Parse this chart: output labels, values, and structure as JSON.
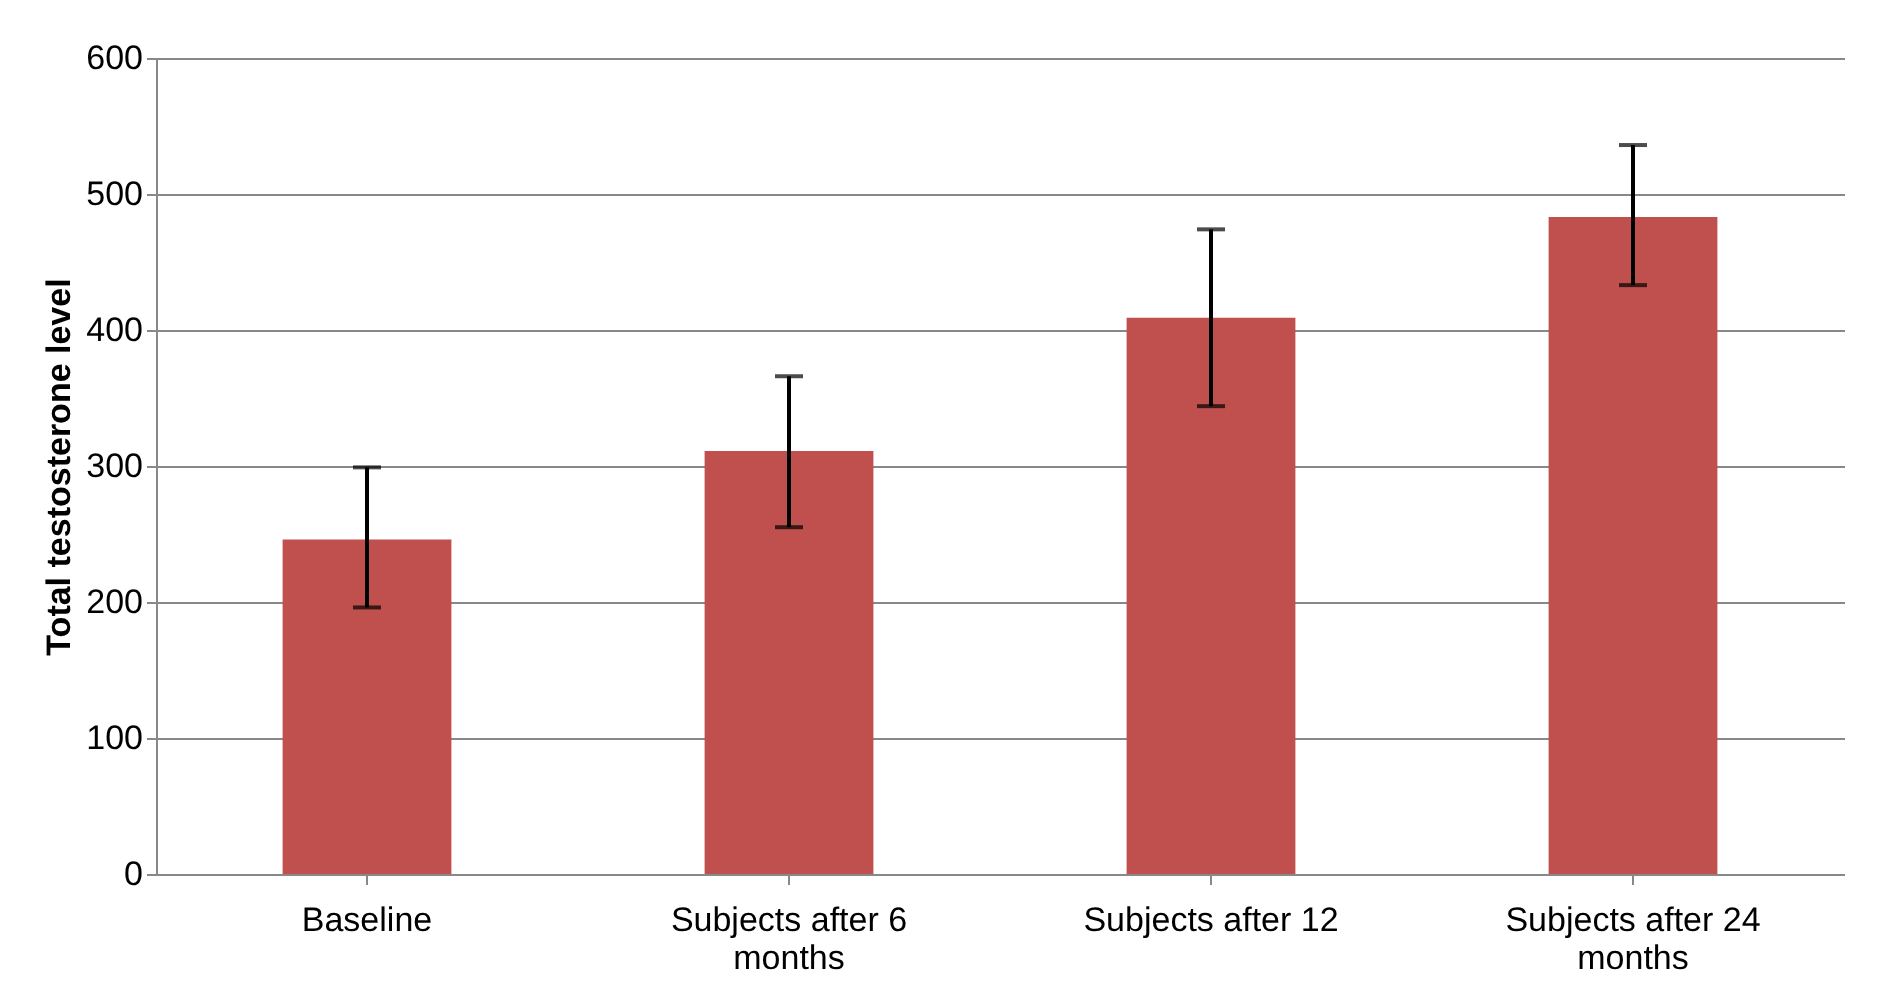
{
  "chart_data": {
    "type": "bar",
    "ylabel": "Total testosterone level",
    "categories": [
      "Baseline",
      "Subjects after 6 months",
      "Subjects after 12",
      "Subjects after 24 months"
    ],
    "values": [
      246,
      311,
      409,
      483
    ],
    "errors": [
      [
        196,
        299
      ],
      [
        255,
        366
      ],
      [
        344,
        474
      ],
      [
        433,
        536
      ]
    ],
    "color": "#c0504d",
    "ylim": [
      0,
      600
    ],
    "yticks": [
      0,
      100,
      200,
      300,
      400,
      500,
      600
    ],
    "grid": "y"
  }
}
